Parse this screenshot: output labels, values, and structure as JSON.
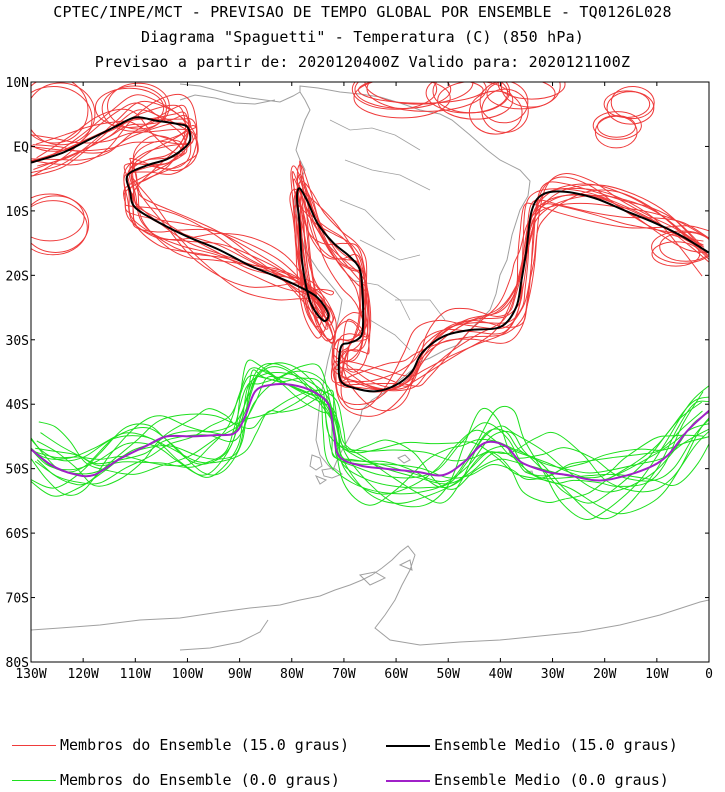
{
  "header": {
    "line1": "CPTEC/INPE/MCT - PREVISAO DE TEMPO GLOBAL POR ENSEMBLE - TQ0126L028",
    "line2": "Diagrama \"Spaguetti\" - Temperatura (C) (850 hPa)",
    "line3": "Previsao a partir de: 2020120400Z  Valido para: 2020121100Z"
  },
  "axes": {
    "lat_labels": [
      "10N",
      "EQ",
      "10S",
      "20S",
      "30S",
      "40S",
      "50S",
      "60S",
      "70S",
      "80S"
    ],
    "lon_labels": [
      "130W",
      "120W",
      "110W",
      "100W",
      "90W",
      "80W",
      "70W",
      "60W",
      "50W",
      "40W",
      "30W",
      "20W",
      "10W",
      "0"
    ],
    "lat_range": [
      10,
      -80
    ],
    "lon_range": [
      -130,
      0
    ]
  },
  "legend": {
    "members_15": "Membros do Ensemble (15.0 graus)",
    "mean_15": "Ensemble Medio (15.0 graus)",
    "members_0": "Membros do Ensemble (0.0 graus)",
    "mean_0": "Ensemble Medio (0.0 graus)"
  },
  "colors": {
    "members_15": "#ef3b3b",
    "mean_15": "#000000",
    "members_0": "#1ee01e",
    "mean_0": "#a020c8",
    "coast": "#a0a0a0"
  },
  "chart_data": {
    "type": "map",
    "projection": "cylindrical lon/lat",
    "isotherms": [
      {
        "name": "Ensemble Medio (15.0 graus)",
        "level": 15.0,
        "points": [
          [
            -130,
            -2.5
          ],
          [
            -124,
            -1
          ],
          [
            -119,
            1
          ],
          [
            -114,
            3
          ],
          [
            -110,
            4.5
          ],
          [
            -106,
            4
          ],
          [
            -102,
            3.5
          ],
          [
            -100,
            3
          ],
          [
            -99.5,
            1
          ],
          [
            -101,
            -0.5
          ],
          [
            -104,
            -2
          ],
          [
            -108,
            -3
          ],
          [
            -111.5,
            -4.5
          ],
          [
            -111,
            -7
          ],
          [
            -110,
            -9.5
          ],
          [
            -105,
            -12
          ],
          [
            -100,
            -14
          ],
          [
            -94,
            -16
          ],
          [
            -88,
            -18.5
          ],
          [
            -82,
            -20.5
          ],
          [
            -78,
            -22
          ],
          [
            -75,
            -23.5
          ],
          [
            -73,
            -26
          ],
          [
            -74,
            -27
          ],
          [
            -76.5,
            -24
          ],
          [
            -78,
            -18
          ],
          [
            -78.5,
            -12
          ],
          [
            -79,
            -8
          ],
          [
            -78.5,
            -6.5
          ],
          [
            -77,
            -8.5
          ],
          [
            -75,
            -12
          ],
          [
            -72,
            -15
          ],
          [
            -69,
            -17
          ],
          [
            -67,
            -19
          ],
          [
            -66.5,
            -22
          ],
          [
            -66.3,
            -26
          ],
          [
            -66.5,
            -29
          ],
          [
            -67.5,
            -30
          ],
          [
            -69,
            -30.5
          ],
          [
            -70.5,
            -31
          ],
          [
            -71,
            -34
          ],
          [
            -70.5,
            -36.5
          ],
          [
            -68,
            -37.5
          ],
          [
            -64,
            -38
          ],
          [
            -60,
            -37
          ],
          [
            -57,
            -35
          ],
          [
            -55,
            -32
          ],
          [
            -51,
            -29.5
          ],
          [
            -46,
            -28.5
          ],
          [
            -40,
            -28
          ],
          [
            -37,
            -25
          ],
          [
            -36,
            -21
          ],
          [
            -35,
            -16
          ],
          [
            -34,
            -10
          ],
          [
            -32,
            -7.5
          ],
          [
            -28,
            -7
          ],
          [
            -22,
            -8
          ],
          [
            -16,
            -10
          ],
          [
            -10,
            -12
          ],
          [
            -5,
            -14
          ],
          [
            0,
            -16.5
          ]
        ]
      },
      {
        "name": "Ensemble Medio (0.0 graus)",
        "level": 0.0,
        "points": [
          [
            -130,
            -47
          ],
          [
            -126,
            -49.5
          ],
          [
            -122,
            -50.8
          ],
          [
            -118,
            -51
          ],
          [
            -113,
            -48.5
          ],
          [
            -108,
            -46.5
          ],
          [
            -104,
            -45
          ],
          [
            -99,
            -45
          ],
          [
            -95,
            -44.8
          ],
          [
            -91,
            -44.5
          ],
          [
            -89,
            -42
          ],
          [
            -87,
            -38
          ],
          [
            -84,
            -37
          ],
          [
            -80,
            -37
          ],
          [
            -76,
            -38
          ],
          [
            -73,
            -40
          ],
          [
            -72,
            -44
          ],
          [
            -71,
            -48
          ],
          [
            -67,
            -49.5
          ],
          [
            -62,
            -50
          ],
          [
            -56,
            -50.5
          ],
          [
            -51,
            -51
          ],
          [
            -47,
            -49
          ],
          [
            -43,
            -46
          ],
          [
            -39,
            -46.5
          ],
          [
            -36,
            -49
          ],
          [
            -31,
            -50.5
          ],
          [
            -27,
            -51
          ],
          [
            -22,
            -51.8
          ],
          [
            -18,
            -51.5
          ],
          [
            -12,
            -50
          ],
          [
            -8,
            -48
          ],
          [
            -4,
            -44
          ],
          [
            0,
            -41
          ]
        ]
      }
    ],
    "members_per_isotherm": 15
  }
}
